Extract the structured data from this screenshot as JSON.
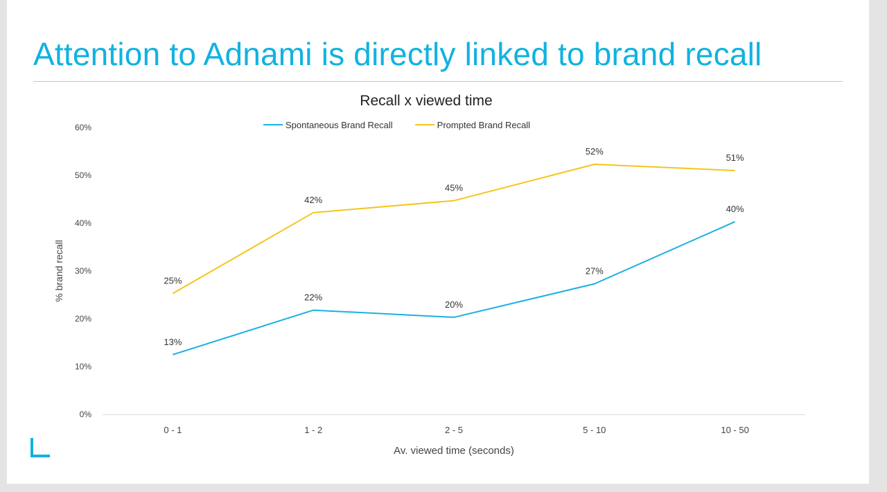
{
  "slide": {
    "title": "Attention to Adnami is directly linked to brand recall",
    "accent_color": "#11b2e0"
  },
  "chart_data": {
    "type": "line",
    "title": "Recall x viewed time",
    "xlabel": "Av. viewed time (seconds)",
    "ylabel": "% brand recall",
    "categories": [
      "0 - 1",
      "1 - 2",
      "2 - 5",
      "5 - 10",
      "10 - 50"
    ],
    "ylim": [
      0,
      60
    ],
    "yticks": [
      0,
      10,
      20,
      30,
      40,
      50,
      60
    ],
    "ytick_labels": [
      "0%",
      "10%",
      "20%",
      "30%",
      "40%",
      "50%",
      "60%"
    ],
    "grid": false,
    "legend_position": "top",
    "series": [
      {
        "name": "Spontaneous Brand Recall",
        "color": "#1ab0e2",
        "values": [
          12.5,
          21.8,
          20.3,
          27.3,
          40.3
        ],
        "labels": [
          "13%",
          "22%",
          "20%",
          "27%",
          "40%"
        ]
      },
      {
        "name": "Prompted Brand Recall",
        "color": "#f5c518",
        "values": [
          25.3,
          42.2,
          44.7,
          52.3,
          51.0
        ],
        "labels": [
          "25%",
          "42%",
          "45%",
          "52%",
          "51%"
        ]
      }
    ]
  }
}
